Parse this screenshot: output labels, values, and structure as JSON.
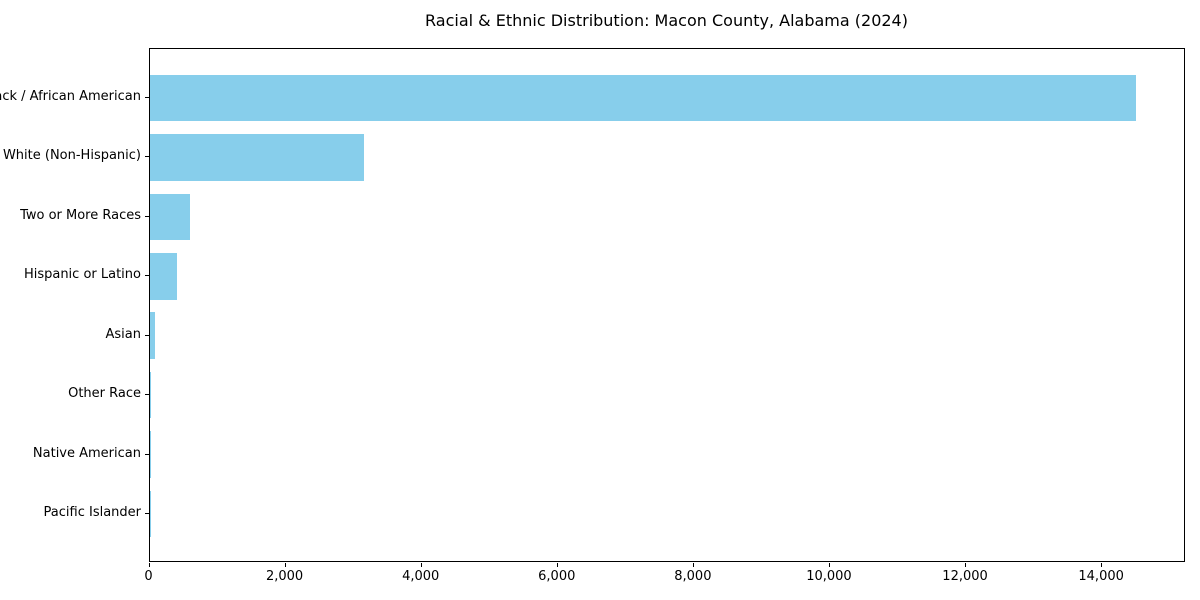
{
  "chart_data": {
    "type": "bar",
    "orientation": "horizontal",
    "title": "Racial & Ethnic Distribution: Macon County, Alabama (2024)",
    "categories": [
      "Black / African American",
      "White (Non-Hispanic)",
      "Two or More Races",
      "Hispanic or Latino",
      "Asian",
      "Other Race",
      "Native American",
      "Pacific Islander"
    ],
    "values": [
      14500,
      3150,
      590,
      400,
      75,
      25,
      10,
      5
    ],
    "xlabel": "",
    "ylabel": "",
    "xlim": [
      0,
      15225
    ],
    "xticks": [
      {
        "value": 0,
        "label": "0"
      },
      {
        "value": 2000,
        "label": "2,000"
      },
      {
        "value": 4000,
        "label": "4,000"
      },
      {
        "value": 6000,
        "label": "6,000"
      },
      {
        "value": 8000,
        "label": "8,000"
      },
      {
        "value": 10000,
        "label": "10,000"
      },
      {
        "value": 12000,
        "label": "12,000"
      },
      {
        "value": 14000,
        "label": "14,000"
      }
    ],
    "grid": false,
    "legend": "none",
    "bar_color": "#87CEEB",
    "spine_color": "#000000",
    "background_color": "#ffffff"
  }
}
